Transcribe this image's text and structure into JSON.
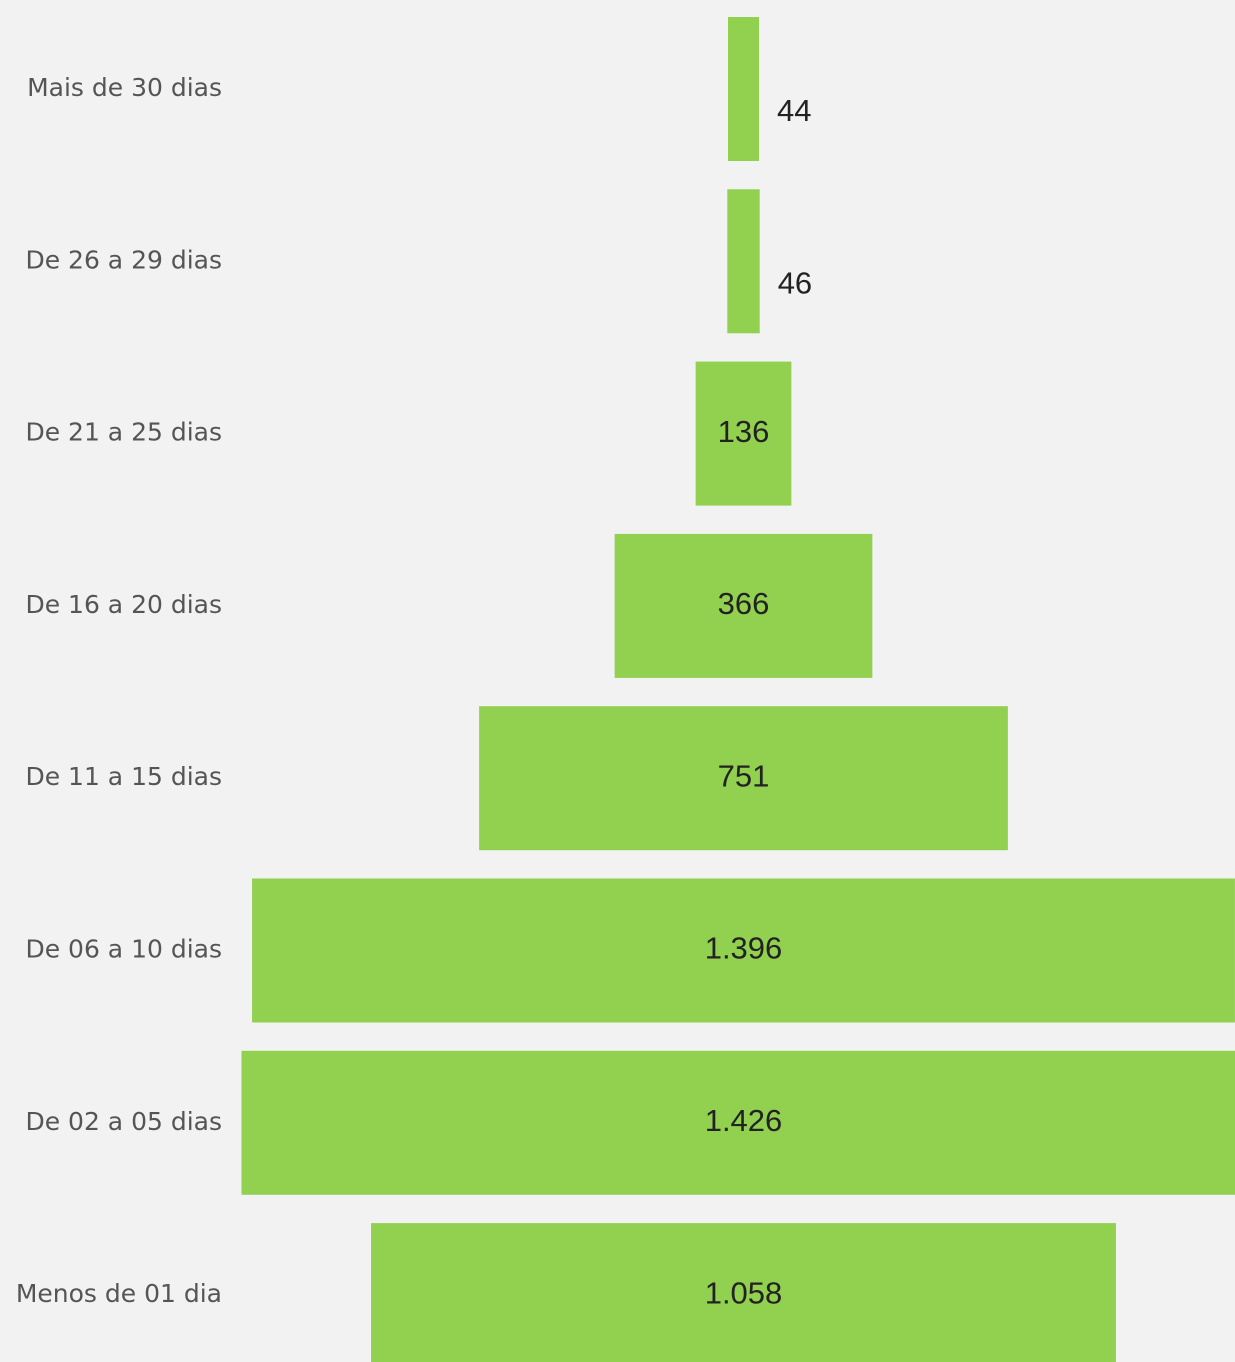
{
  "chart_data": {
    "type": "funnel",
    "categories": [
      "Mais de 30 dias",
      "De 26 a 29 dias",
      "De 21 a 25 dias",
      "De 16 a 20 dias",
      "De 11 a 15 dias",
      "De 06 a 10 dias",
      "De 02 a 05 dias",
      "Menos de 01 dia"
    ],
    "values": [
      44,
      46,
      136,
      366,
      751,
      1396,
      1426,
      1058
    ],
    "value_labels": [
      "44",
      "46",
      "136",
      "366",
      "751",
      "1.396",
      "1.426",
      "1.058"
    ],
    "color": "#92d050"
  }
}
